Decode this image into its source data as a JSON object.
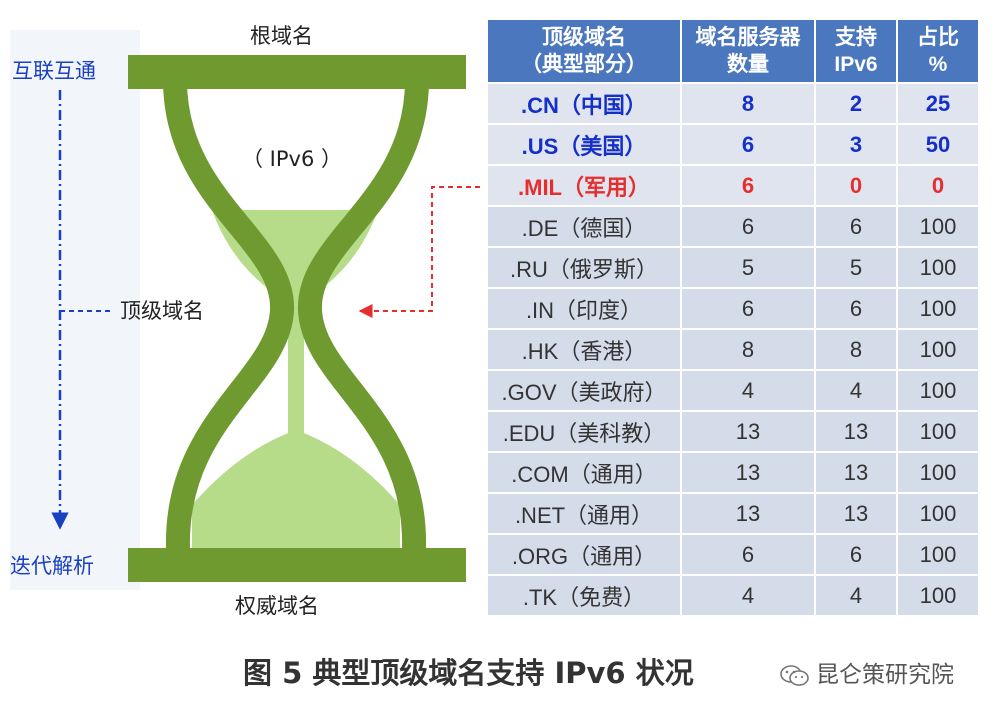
{
  "hourglass": {
    "top_label": "根域名",
    "bottom_label": "权威域名",
    "middle_label": "顶级域名",
    "ipv6_label": "（ IPv6 ）",
    "left_top_label": "互联互通",
    "left_bottom_label": "迭代解析",
    "colors": {
      "frame": "#6e9a2f",
      "sand": "#b6dc8a",
      "arrow_blue": "#1a3fc0",
      "arrow_red": "#e62e2e"
    }
  },
  "table": {
    "headers": [
      {
        "line1": "顶级域名",
        "line2": "（典型部分）"
      },
      {
        "line1": "域名服务器",
        "line2": "数量"
      },
      {
        "line1": "支持",
        "line2": "IPv6"
      },
      {
        "line1": "占比",
        "line2": "%"
      }
    ],
    "rows": [
      {
        "tld": ".CN（中国）",
        "servers": "8",
        "ipv6": "2",
        "pct": "25",
        "highlight": "blue"
      },
      {
        "tld": ".US（美国）",
        "servers": "6",
        "ipv6": "3",
        "pct": "50",
        "highlight": "blue"
      },
      {
        "tld": ".MIL（军用）",
        "servers": "6",
        "ipv6": "0",
        "pct": "0",
        "highlight": "red"
      },
      {
        "tld": ".DE（德国）",
        "servers": "6",
        "ipv6": "6",
        "pct": "100",
        "highlight": "none"
      },
      {
        "tld": ".RU（俄罗斯）",
        "servers": "5",
        "ipv6": "5",
        "pct": "100",
        "highlight": "none"
      },
      {
        "tld": ".IN（印度）",
        "servers": "6",
        "ipv6": "6",
        "pct": "100",
        "highlight": "none"
      },
      {
        "tld": ".HK（香港）",
        "servers": "8",
        "ipv6": "8",
        "pct": "100",
        "highlight": "none"
      },
      {
        "tld": ".GOV（美政府）",
        "servers": "4",
        "ipv6": "4",
        "pct": "100",
        "highlight": "none"
      },
      {
        "tld": ".EDU（美科教）",
        "servers": "13",
        "ipv6": "13",
        "pct": "100",
        "highlight": "none"
      },
      {
        "tld": ".COM（通用）",
        "servers": "13",
        "ipv6": "13",
        "pct": "100",
        "highlight": "none"
      },
      {
        "tld": ".NET（通用）",
        "servers": "13",
        "ipv6": "13",
        "pct": "100",
        "highlight": "none"
      },
      {
        "tld": ".ORG（通用）",
        "servers": "6",
        "ipv6": "6",
        "pct": "100",
        "highlight": "none"
      },
      {
        "tld": ".TK（免费）",
        "servers": "4",
        "ipv6": "4",
        "pct": "100",
        "highlight": "none"
      }
    ]
  },
  "caption": "图 5  典型顶级域名支持 IPv6 状况",
  "watermark": {
    "text": "昆仑策研究院",
    "icon": "wechat-icon"
  }
}
